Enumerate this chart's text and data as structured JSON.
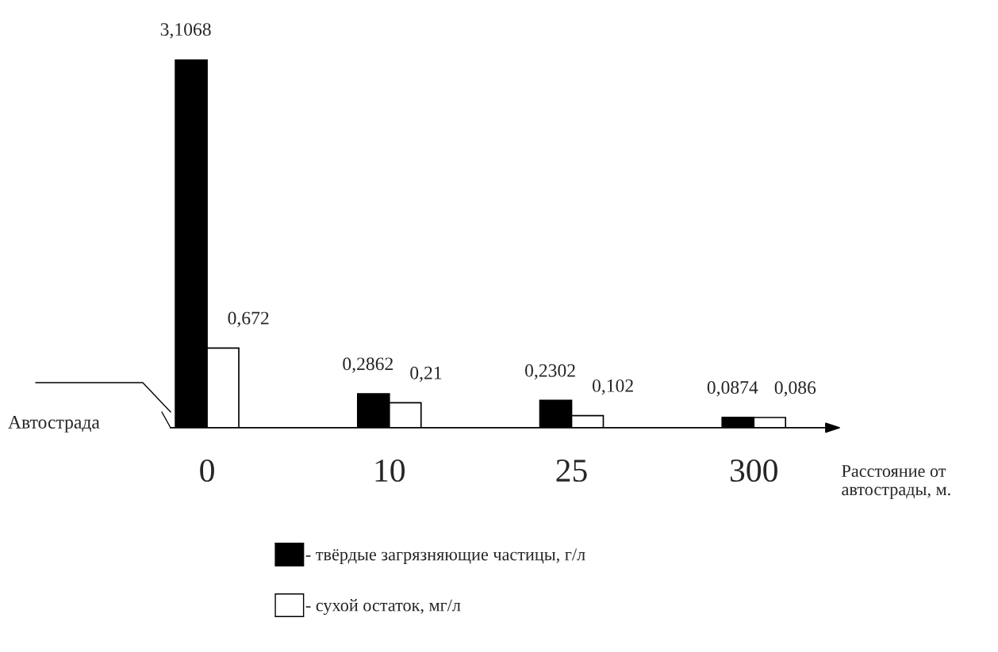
{
  "chart_data": {
    "type": "bar",
    "categories": [
      "0",
      "10",
      "25",
      "300"
    ],
    "series": [
      {
        "name": "- твёрдые загрязняющие частицы, г/л",
        "color": "#000000",
        "values": [
          3.1068,
          0.2862,
          0.2302,
          0.0874
        ],
        "value_labels": [
          "3,1068",
          "0,2862",
          "0,2302",
          "0,0874"
        ]
      },
      {
        "name": "- сухой остаток, мг/л",
        "color": "#ffffff",
        "values": [
          0.672,
          0.21,
          0.102,
          0.086
        ],
        "value_labels": [
          "0,672",
          "0,21",
          "0,102",
          "0,086"
        ]
      }
    ],
    "xlabel": "Расстояние от автострады, м.",
    "annotations": [
      "Автострада"
    ],
    "legend": "bottom",
    "grid": false,
    "tick_labels": "x"
  }
}
